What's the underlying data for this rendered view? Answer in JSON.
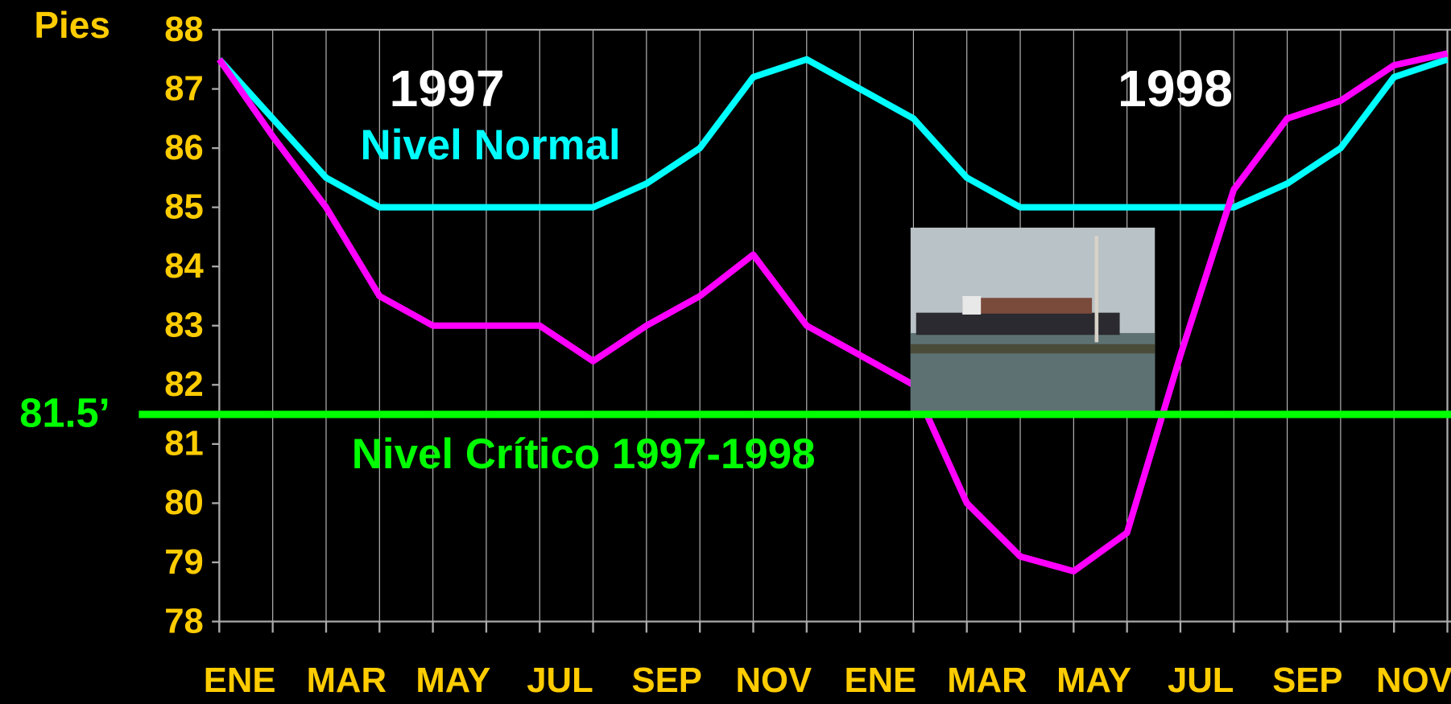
{
  "chart_data": {
    "type": "line",
    "y_label": "Pies",
    "annotations": [
      "1997",
      "1998"
    ],
    "categories": [
      "ENE",
      null,
      "MAR",
      null,
      "MAY",
      null,
      "JUL",
      null,
      "SEP",
      null,
      "NOV",
      null,
      "ENE",
      null,
      "MAR",
      null,
      "MAY",
      null,
      "JUL",
      null,
      "SEP",
      null,
      "NOV",
      null
    ],
    "series": [
      {
        "name": "Nivel Normal",
        "color": "#00FFFF",
        "values": [
          87.5,
          86.5,
          85.5,
          85,
          85,
          85,
          85,
          85,
          85.4,
          86,
          87.2,
          87.5,
          87,
          86.5,
          85.5,
          85,
          85,
          85,
          85,
          85,
          85.4,
          86,
          87.2,
          87.5
        ]
      },
      {
        "color": "#FF00FF",
        "values": [
          87.5,
          86.2,
          85,
          83.5,
          83,
          83,
          83,
          82.4,
          83,
          83.5,
          84.2,
          83,
          82.5,
          82,
          80,
          79.1,
          78.85,
          79.5,
          82.5,
          85.3,
          86.5,
          86.8,
          87.4,
          87.6
        ]
      }
    ],
    "critical_level": {
      "value": 81.5,
      "label": "81.5’",
      "name": "Nivel Crítico  1997-1998",
      "color": "#00FF00"
    },
    "ylim": [
      78,
      88
    ],
    "yticks": [
      78,
      79,
      80,
      81,
      82,
      83,
      84,
      85,
      86,
      87,
      88
    ],
    "grid": true
  }
}
